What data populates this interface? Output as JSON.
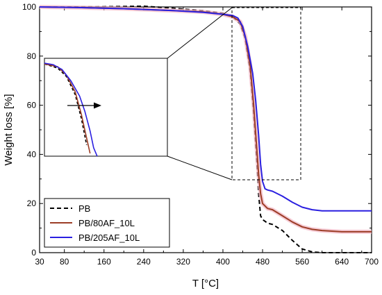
{
  "chart_data": {
    "type": "line",
    "title": "",
    "xlabel": "T [°C]",
    "ylabel": "Weight loss [%]",
    "xlim": [
      30,
      700
    ],
    "ylim": [
      0,
      100
    ],
    "x_ticks": [
      "30",
      "80",
      "160",
      "240",
      "320",
      "400",
      "480",
      "560",
      "640",
      "700"
    ],
    "x_tick_values": [
      30,
      80,
      160,
      240,
      320,
      400,
      480,
      560,
      640,
      700
    ],
    "y_ticks": [
      "0",
      "20",
      "40",
      "60",
      "80",
      "100"
    ],
    "y_tick_values": [
      0,
      20,
      40,
      60,
      80,
      100
    ],
    "grid": false,
    "legend_position": "bottom-left",
    "series": [
      {
        "name": "PB",
        "color": "#000000",
        "style": "dashed",
        "x": [
          30,
          100,
          200,
          240,
          300,
          360,
          400,
          420,
          435,
          445,
          455,
          462,
          468,
          472,
          476,
          480,
          490,
          500,
          520,
          540,
          560,
          580,
          600,
          640,
          700
        ],
        "y": [
          100,
          100,
          100.2,
          100.3,
          99.5,
          98.5,
          97.5,
          96,
          93,
          87,
          74,
          57,
          38,
          24,
          15,
          13.5,
          12,
          11.5,
          9,
          5,
          1.5,
          0.3,
          0,
          0,
          0
        ]
      },
      {
        "name": "PB/80AF_10L",
        "color": "#9c3d26",
        "style": "solid",
        "x": [
          30,
          100,
          200,
          300,
          360,
          400,
          420,
          435,
          445,
          455,
          462,
          468,
          472,
          476,
          480,
          490,
          500,
          520,
          540,
          560,
          580,
          600,
          640,
          700
        ],
        "y": [
          100,
          99.8,
          99.3,
          98.5,
          98,
          97,
          96,
          94,
          88,
          76,
          60,
          43,
          32,
          24,
          20,
          18,
          17.5,
          15,
          12.5,
          10.5,
          9.5,
          9,
          8.5,
          8.5
        ]
      },
      {
        "name": "PB/205AF_10L",
        "color": "#2a1fe0",
        "style": "solid",
        "x": [
          30,
          100,
          200,
          300,
          360,
          400,
          420,
          430,
          440,
          450,
          460,
          466,
          472,
          476,
          480,
          485,
          490,
          500,
          520,
          540,
          560,
          580,
          600,
          640,
          700
        ],
        "y": [
          100,
          99.8,
          99.3,
          98.5,
          97.8,
          97,
          96.5,
          95.5,
          92,
          84,
          73,
          62,
          48,
          36,
          29,
          26,
          25.5,
          25,
          23,
          20.5,
          18.5,
          17.5,
          17,
          17,
          17
        ]
      }
    ],
    "inset": {
      "description_source": "magnified view of boxed region",
      "zoom_box_x": [
        420,
        560
      ],
      "zoom_box_y": [
        30,
        100
      ]
    }
  },
  "legend": {
    "entries": [
      "PB",
      "PB/80AF_10L",
      "PB/205AF_10L"
    ]
  }
}
